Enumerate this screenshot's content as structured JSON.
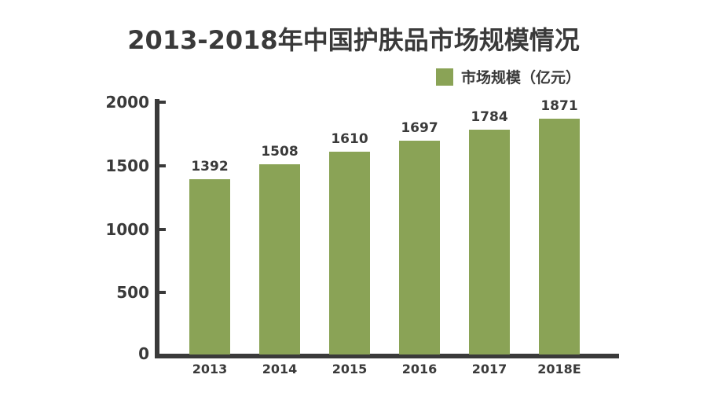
{
  "chart_data": {
    "type": "bar",
    "title": "2013-2018年中国护肤品市场规模情况",
    "categories": [
      "2013",
      "2014",
      "2015",
      "2016",
      "2017",
      "2018E"
    ],
    "series": [
      {
        "name": "市场规模（亿元）",
        "values": [
          1392,
          1508,
          1610,
          1697,
          1784,
          1871
        ],
        "color": "#8aa356"
      }
    ],
    "xlabel": "",
    "ylabel": "",
    "ylim": [
      0,
      2000
    ],
    "yticks": [
      "0",
      "500",
      "1000",
      "1500",
      "2000"
    ],
    "grid": false,
    "legend_position": "top-right",
    "data_labels": true
  },
  "legend": {
    "label": "市场规模（亿元）",
    "color": "#8aa356"
  }
}
